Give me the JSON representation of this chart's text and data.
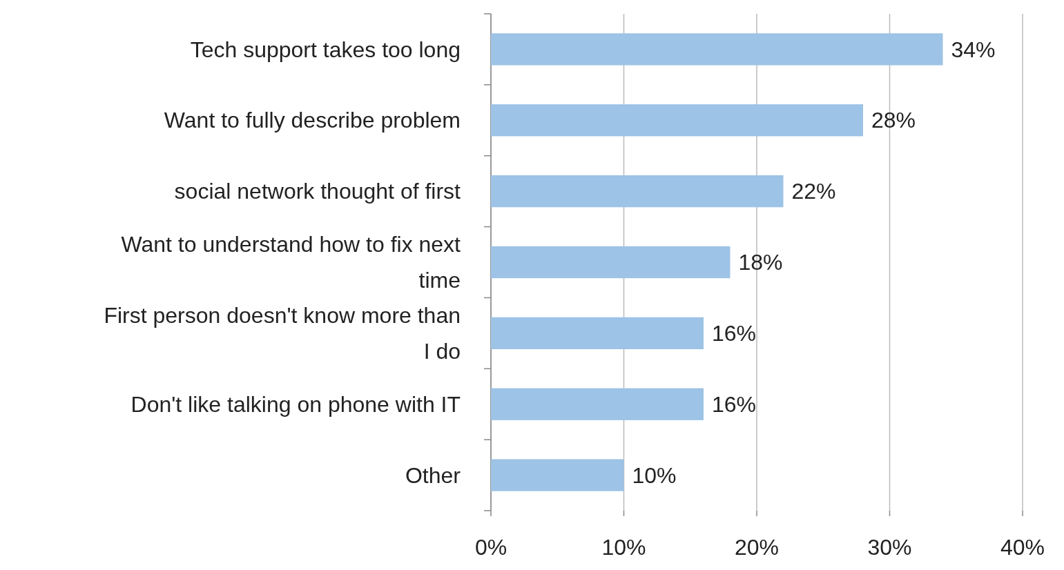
{
  "chart_data": {
    "type": "bar",
    "orientation": "horizontal",
    "categories": [
      "Tech support takes too long",
      "Want to fully describe problem",
      "social network thought of first",
      "Want to understand how to fix next time",
      "First person doesn't know more than I do",
      "Don't like talking on phone with IT",
      "Other"
    ],
    "values": [
      34,
      28,
      22,
      18,
      16,
      16,
      10
    ],
    "color": "#9dc3e6",
    "value_labels": [
      "34%",
      "28%",
      "22%",
      "18%",
      "16%",
      "16%",
      "10%"
    ],
    "xlim": [
      0,
      40
    ],
    "xticks": [
      {
        "value": 0,
        "label": "0%"
      },
      {
        "value": 10,
        "label": "10%"
      },
      {
        "value": 20,
        "label": "20%"
      },
      {
        "value": 30,
        "label": "30%"
      },
      {
        "value": 40,
        "label": "40%"
      }
    ],
    "grid": "x"
  }
}
